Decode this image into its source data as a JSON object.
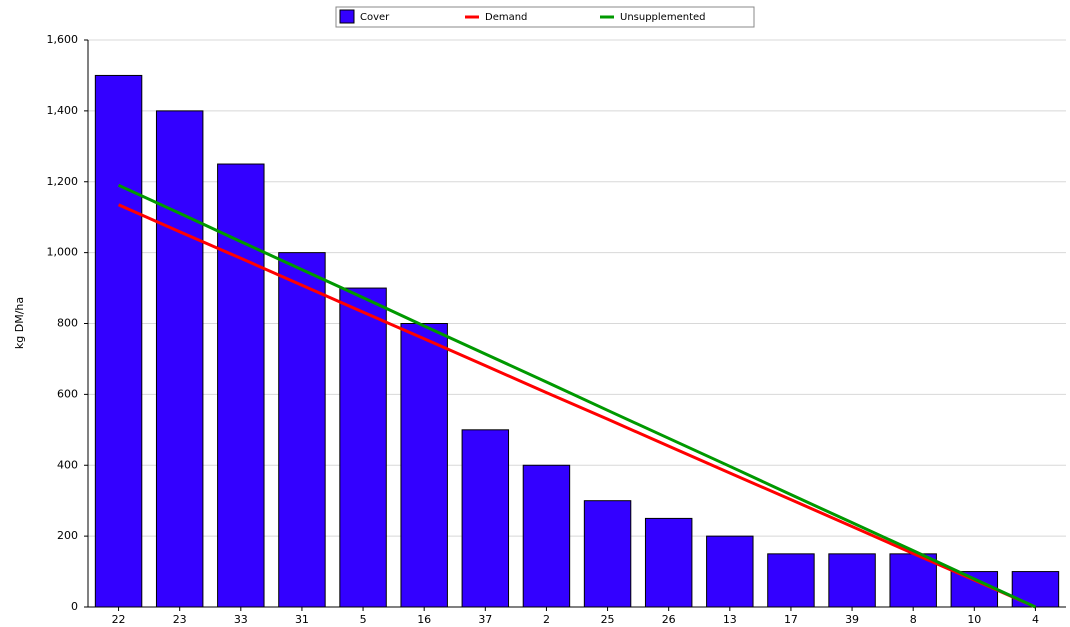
{
  "chart_data": {
    "type": "bar-line",
    "y_label": "kg DM/ha",
    "categories": [
      "22",
      "23",
      "33",
      "31",
      "5",
      "16",
      "37",
      "2",
      "25",
      "26",
      "13",
      "17",
      "39",
      "8",
      "10",
      "4"
    ],
    "series": [
      {
        "name": "Cover",
        "type": "bar",
        "color": "#3300ff",
        "values": [
          1500,
          1400,
          1250,
          1000,
          900,
          800,
          500,
          400,
          300,
          250,
          200,
          150,
          150,
          150,
          100,
          100
        ]
      },
      {
        "name": "Demand",
        "type": "line",
        "color": "#ff0000",
        "values": [
          1135,
          1059,
          984,
          908,
          832,
          757,
          681,
          605,
          530,
          454,
          378,
          303,
          227,
          151,
          76,
          0
        ]
      },
      {
        "name": "Unsupplemented",
        "type": "line",
        "color": "#009900",
        "values": [
          1190,
          1111,
          1031,
          952,
          873,
          793,
          714,
          635,
          555,
          476,
          397,
          317,
          238,
          159,
          79,
          0
        ]
      }
    ],
    "ylim": [
      0,
      1600
    ],
    "yticks": [
      0,
      200,
      400,
      600,
      800,
      {
        "value": 1000,
        "label": "1,000"
      },
      {
        "value": 1200,
        "label": "1,200"
      },
      {
        "value": 1400,
        "label": "1,400"
      },
      {
        "value": 1600,
        "label": "1,600"
      }
    ],
    "grid": true
  }
}
